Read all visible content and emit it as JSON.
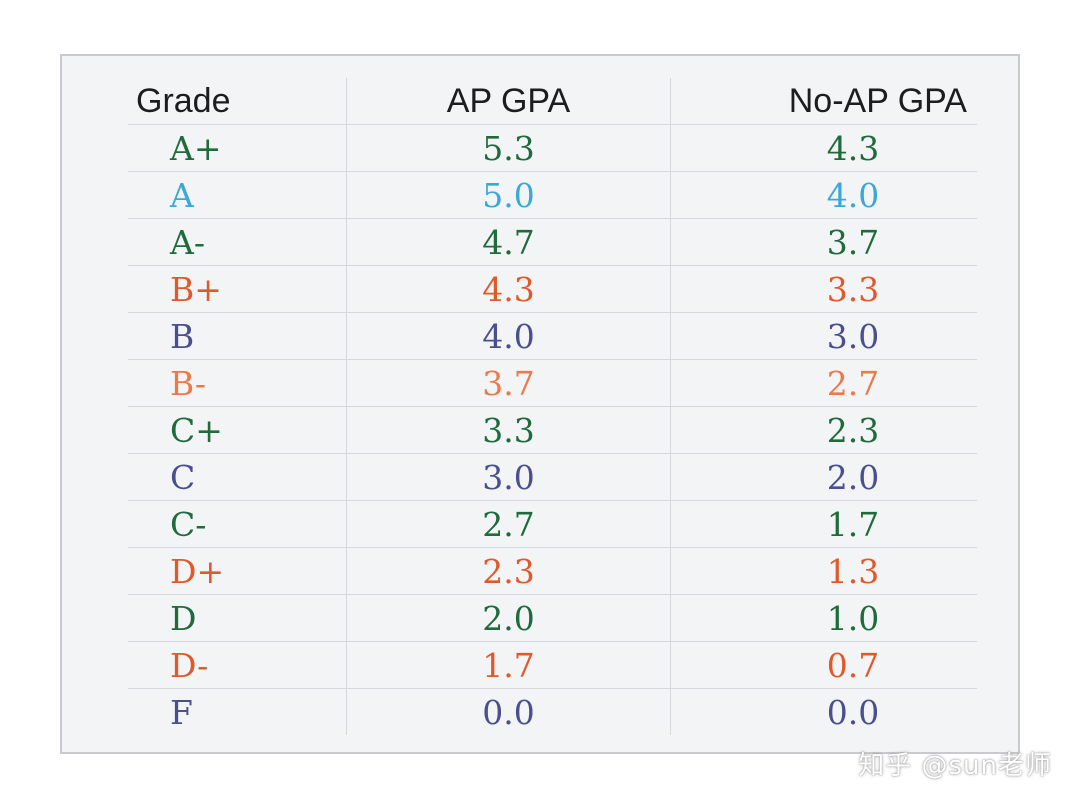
{
  "table": {
    "headers": [
      "Grade",
      "AP GPA",
      "No-AP GPA"
    ],
    "rows": [
      {
        "grade": "A+",
        "ap": "5.3",
        "noap": "4.3",
        "color": "#1f6b3c"
      },
      {
        "grade": "A",
        "ap": "5.0",
        "noap": "4.0",
        "color": "#3aa9d6"
      },
      {
        "grade": "A-",
        "ap": "4.7",
        "noap": "3.7",
        "color": "#1f6b3c"
      },
      {
        "grade": "B+",
        "ap": "4.3",
        "noap": "3.3",
        "color": "#e0592b"
      },
      {
        "grade": "B",
        "ap": "4.0",
        "noap": "3.0",
        "color": "#4b4f8f"
      },
      {
        "grade": "B-",
        "ap": "3.7",
        "noap": "2.7",
        "color": "#ea7a4a"
      },
      {
        "grade": "C+",
        "ap": "3.3",
        "noap": "2.3",
        "color": "#1f6b3c"
      },
      {
        "grade": "C",
        "ap": "3.0",
        "noap": "2.0",
        "color": "#4b4f8f"
      },
      {
        "grade": "C-",
        "ap": "2.7",
        "noap": "1.7",
        "color": "#1f6b3c"
      },
      {
        "grade": "D+",
        "ap": "2.3",
        "noap": "1.3",
        "color": "#e0592b"
      },
      {
        "grade": "D",
        "ap": "2.0",
        "noap": "1.0",
        "color": "#1f6b3c"
      },
      {
        "grade": "D-",
        "ap": "1.7",
        "noap": "0.7",
        "color": "#e0592b"
      },
      {
        "grade": "F",
        "ap": "0.0",
        "noap": "0.0",
        "color": "#4b4f8f"
      }
    ]
  },
  "watermark": "知乎 @sun老师"
}
